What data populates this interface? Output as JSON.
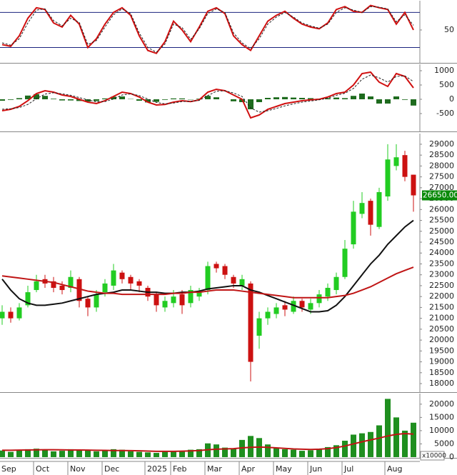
{
  "chart_data": [
    {
      "type": "line",
      "ylim": [
        -5,
        100
      ],
      "yticks": [
        50
      ],
      "reference_lines": [
        20,
        80
      ],
      "reference_color": "#1a237e",
      "series": [
        {
          "kind": "line",
          "color": "#d01010",
          "values": [
            25,
            22,
            40,
            70,
            88,
            85,
            62,
            55,
            75,
            60,
            20,
            35,
            60,
            80,
            88,
            75,
            40,
            15,
            10,
            30,
            65,
            50,
            30,
            55,
            82,
            88,
            78,
            40,
            25,
            15,
            40,
            65,
            75,
            82,
            70,
            60,
            55,
            52,
            62,
            85,
            90,
            82,
            80,
            92,
            88,
            85,
            60,
            80,
            50
          ]
        },
        {
          "kind": "dashed",
          "color": "#222222",
          "values": [
            28,
            24,
            35,
            62,
            84,
            86,
            66,
            57,
            70,
            63,
            25,
            32,
            55,
            76,
            86,
            78,
            45,
            20,
            12,
            26,
            60,
            54,
            34,
            52,
            78,
            86,
            80,
            45,
            28,
            18,
            35,
            60,
            72,
            80,
            72,
            62,
            57,
            53,
            60,
            80,
            88,
            84,
            80,
            90,
            89,
            86,
            64,
            76,
            58
          ]
        }
      ]
    },
    {
      "type": "line",
      "ylim": [
        -1100,
        1225
      ],
      "yticks": [
        1000,
        500,
        0,
        -500
      ],
      "series": [
        {
          "kind": "bar",
          "color": "#1e6b1e",
          "values": [
            -50,
            -20,
            40,
            130,
            180,
            120,
            20,
            -40,
            -40,
            -60,
            -80,
            -60,
            30,
            90,
            100,
            10,
            -50,
            -110,
            -90,
            -20,
            30,
            30,
            -10,
            20,
            120,
            70,
            0,
            -70,
            -100,
            -350,
            -100,
            50,
            70,
            80,
            60,
            50,
            40,
            20,
            40,
            60,
            40,
            120,
            200,
            100,
            -150,
            -150,
            100,
            -20,
            -220
          ]
        },
        {
          "kind": "line",
          "color": "#d01010",
          "values": [
            -400,
            -350,
            -250,
            -50,
            200,
            300,
            250,
            150,
            100,
            0,
            -100,
            -150,
            -50,
            100,
            250,
            200,
            80,
            -100,
            -200,
            -180,
            -100,
            -50,
            -80,
            -20,
            250,
            350,
            300,
            150,
            0,
            -650,
            -550,
            -350,
            -250,
            -150,
            -100,
            -50,
            -20,
            0,
            80,
            200,
            250,
            500,
            900,
            950,
            600,
            450,
            900,
            800,
            400
          ]
        },
        {
          "kind": "dashed",
          "color": "#222222",
          "values": [
            -350,
            -330,
            -290,
            -180,
            20,
            180,
            230,
            190,
            140,
            60,
            -20,
            -90,
            -80,
            10,
            150,
            190,
            130,
            10,
            -110,
            -160,
            -130,
            -80,
            -70,
            -40,
            130,
            280,
            300,
            220,
            100,
            -300,
            -450,
            -400,
            -320,
            -230,
            -160,
            -100,
            -60,
            -20,
            40,
            140,
            210,
            380,
            700,
            850,
            750,
            600,
            800,
            820,
            620
          ]
        }
      ]
    },
    {
      "type": "candlestick",
      "ylim": [
        17640,
        29490
      ],
      "yticks": [
        18000,
        18500,
        19000,
        19500,
        20000,
        20500,
        21000,
        21500,
        22000,
        22500,
        23000,
        23500,
        24000,
        24500,
        25000,
        25500,
        26000,
        26500,
        27000,
        27500,
        28000,
        28500,
        29000
      ],
      "up_color": "#22cc22",
      "down_color": "#cc1111",
      "open": [
        21000,
        21300,
        21000,
        21600,
        22300,
        22800,
        22700,
        22500,
        22400,
        22800,
        21900,
        21500,
        22200,
        22500,
        23100,
        22900,
        22700,
        22400,
        22100,
        21500,
        21700,
        22100,
        21700,
        22000,
        22300,
        23500,
        23400,
        22900,
        22500,
        22600,
        20200,
        21000,
        21200,
        21600,
        21300,
        21800,
        21400,
        21700,
        22000,
        22300,
        22900,
        24400,
        25800,
        26400,
        25200,
        26600,
        28000,
        28500,
        27600
      ],
      "high": [
        21600,
        21500,
        21700,
        22500,
        23000,
        23000,
        22900,
        22700,
        23200,
        22900,
        22000,
        22300,
        22800,
        23500,
        23200,
        23000,
        22800,
        22500,
        22200,
        22000,
        22300,
        22300,
        22500,
        22400,
        23600,
        23600,
        23500,
        23000,
        23000,
        22700,
        21300,
        21500,
        21700,
        21800,
        22000,
        21900,
        21900,
        22300,
        22600,
        23100,
        24600,
        26400,
        26800,
        26500,
        27000,
        29000,
        29000,
        28700,
        27600
      ],
      "low": [
        20700,
        20800,
        20900,
        21500,
        22200,
        22400,
        22200,
        22100,
        22200,
        21500,
        21100,
        21300,
        22000,
        22300,
        22600,
        22300,
        22200,
        21800,
        21300,
        21300,
        21500,
        21200,
        21500,
        21800,
        22100,
        23100,
        22800,
        22400,
        22300,
        18100,
        19600,
        20700,
        21000,
        21100,
        21200,
        21300,
        21200,
        21500,
        21800,
        22100,
        22800,
        24200,
        25600,
        24800,
        25100,
        26400,
        27800,
        27300,
        25900
      ],
      "close": [
        21300,
        21000,
        21500,
        22200,
        22700,
        22600,
        22400,
        22300,
        22900,
        21800,
        21500,
        22100,
        22600,
        23200,
        22800,
        22600,
        22500,
        22000,
        21600,
        21800,
        22000,
        21600,
        22300,
        22200,
        23400,
        23300,
        23000,
        22600,
        22800,
        19000,
        21000,
        21300,
        21500,
        21400,
        21800,
        21500,
        21700,
        22100,
        22400,
        22900,
        24200,
        25900,
        26300,
        25300,
        26800,
        28300,
        28400,
        27500,
        26650
      ],
      "series": [
        {
          "kind": "line",
          "color": "#111111",
          "values": [
            22800,
            22300,
            21900,
            21700,
            21600,
            21600,
            21650,
            21700,
            21800,
            21900,
            22000,
            22100,
            22150,
            22200,
            22300,
            22300,
            22250,
            22200,
            22200,
            22150,
            22150,
            22200,
            22200,
            22250,
            22350,
            22400,
            22450,
            22500,
            22500,
            22300,
            22200,
            22050,
            21900,
            21750,
            21600,
            21450,
            21300,
            21300,
            21350,
            21600,
            22000,
            22500,
            23000,
            23500,
            23900,
            24400,
            24800,
            25200,
            25500
          ]
        },
        {
          "kind": "line",
          "color": "#c01515",
          "values": [
            22950,
            22900,
            22850,
            22800,
            22750,
            22700,
            22650,
            22550,
            22450,
            22350,
            22250,
            22200,
            22150,
            22150,
            22100,
            22100,
            22100,
            22100,
            22100,
            22100,
            22150,
            22150,
            22200,
            22200,
            22250,
            22300,
            22300,
            22300,
            22250,
            22200,
            22150,
            22100,
            22050,
            22000,
            21950,
            21950,
            21950,
            21950,
            21950,
            22000,
            22050,
            22150,
            22300,
            22450,
            22650,
            22850,
            23050,
            23200,
            23350
          ]
        }
      ],
      "last_label": {
        "value": 26650,
        "label": "26650.00"
      }
    },
    {
      "type": "bar",
      "ylim": [
        0,
        24000
      ],
      "yticks": [
        0,
        5000,
        10000,
        15000,
        20000
      ],
      "unit_label": "x10000",
      "color": "#1f8f1f",
      "values": [
        2500,
        2000,
        2800,
        3000,
        3200,
        2600,
        2200,
        2400,
        3000,
        2800,
        2600,
        2200,
        2400,
        3000,
        2800,
        2200,
        2000,
        1800,
        1600,
        2000,
        2200,
        2400,
        2800,
        3000,
        5200,
        4800,
        3600,
        3200,
        6500,
        8000,
        7200,
        4800,
        3500,
        3000,
        2800,
        2400,
        2600,
        3000,
        3800,
        4500,
        6200,
        8500,
        9000,
        9500,
        12000,
        22000,
        15000,
        10000,
        13000
      ],
      "series": [
        {
          "kind": "line",
          "color": "#c01515",
          "values": [
            2600,
            2600,
            2650,
            2700,
            2750,
            2800,
            2800,
            2750,
            2700,
            2700,
            2650,
            2600,
            2550,
            2500,
            2500,
            2450,
            2400,
            2300,
            2200,
            2200,
            2200,
            2250,
            2350,
            2500,
            2800,
            3000,
            3100,
            3200,
            3500,
            3700,
            3800,
            3700,
            3500,
            3300,
            3100,
            3000,
            2900,
            3000,
            3200,
            3600,
            4200,
            5000,
            5800,
            6500,
            7200,
            8000,
            8600,
            8900,
            8700
          ]
        }
      ],
      "categories": [
        "Sep",
        null,
        null,
        null,
        "Oct",
        null,
        null,
        null,
        "Nov",
        null,
        null,
        null,
        "Dec",
        null,
        null,
        null,
        null,
        "2025",
        null,
        null,
        "Feb",
        null,
        null,
        null,
        "Mar",
        null,
        null,
        null,
        "Apr",
        null,
        null,
        null,
        "May",
        null,
        null,
        null,
        "Jun",
        null,
        null,
        null,
        "Jul",
        null,
        null,
        null,
        null,
        "Aug",
        null,
        null,
        null
      ]
    }
  ]
}
